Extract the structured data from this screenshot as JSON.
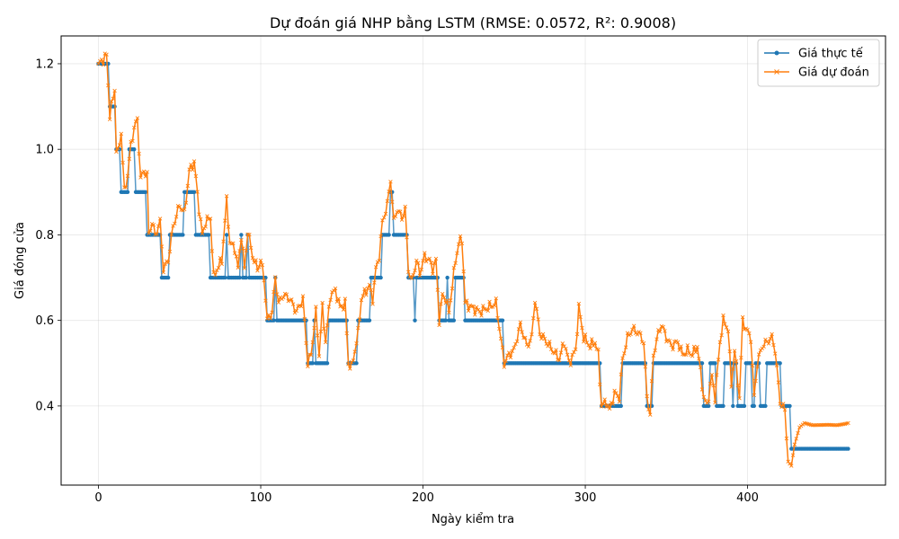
{
  "chart_data": {
    "type": "line",
    "title": "Dự đoán giá NHP bằng LSTM (RMSE: 0.0572, R²: 0.9008)",
    "xlabel": "Ngày kiểm tra",
    "ylabel": "Giá đóng cửa",
    "xlim": [
      -23,
      485
    ],
    "ylim": [
      0.215,
      1.265
    ],
    "x_ticks": [
      0,
      100,
      200,
      300,
      400
    ],
    "y_ticks": [
      0.4,
      0.6,
      0.8,
      1.0,
      1.2
    ],
    "x_tick_labels": [
      "0",
      "100",
      "200",
      "300",
      "400"
    ],
    "y_tick_labels": [
      "0.4",
      "0.6",
      "0.8",
      "1.0",
      "1.2"
    ],
    "grid": true,
    "legend_position": "top-right",
    "n_points": 463,
    "series": [
      {
        "name": "Giá thực tế",
        "color": "#1f77b4",
        "marker": "circle",
        "segments": [
          [
            0,
            1.2
          ],
          [
            7,
            1.1
          ],
          [
            11,
            1.0
          ],
          [
            14,
            0.9
          ],
          [
            19,
            1.0
          ],
          [
            23,
            0.9
          ],
          [
            30,
            0.8
          ],
          [
            39,
            0.7
          ],
          [
            44,
            0.8
          ],
          [
            53,
            0.9
          ],
          [
            60,
            0.8
          ],
          [
            69,
            0.7
          ],
          [
            79,
            0.8
          ],
          [
            80,
            0.7
          ],
          [
            88,
            0.8
          ],
          [
            89,
            0.7
          ],
          [
            92,
            0.8
          ],
          [
            93,
            0.7
          ],
          [
            104,
            0.6
          ],
          [
            109,
            0.7
          ],
          [
            110,
            0.6
          ],
          [
            129,
            0.5
          ],
          [
            133,
            0.6
          ],
          [
            134,
            0.5
          ],
          [
            142,
            0.6
          ],
          [
            154,
            0.5
          ],
          [
            160,
            0.6
          ],
          [
            168,
            0.7
          ],
          [
            175,
            0.8
          ],
          [
            180,
            0.9
          ],
          [
            182,
            0.8
          ],
          [
            191,
            0.7
          ],
          [
            195,
            0.6
          ],
          [
            196,
            0.7
          ],
          [
            210,
            0.6
          ],
          [
            215,
            0.7
          ],
          [
            216,
            0.6
          ],
          [
            220,
            0.7
          ],
          [
            226,
            0.6
          ],
          [
            250,
            0.5
          ],
          [
            310,
            0.4
          ],
          [
            323,
            0.5
          ],
          [
            338,
            0.4
          ],
          [
            342,
            0.5
          ],
          [
            373,
            0.4
          ],
          [
            377,
            0.5
          ],
          [
            381,
            0.4
          ],
          [
            386,
            0.5
          ],
          [
            391,
            0.4
          ],
          [
            392,
            0.5
          ],
          [
            394,
            0.4
          ],
          [
            399,
            0.5
          ],
          [
            403,
            0.4
          ],
          [
            405,
            0.5
          ],
          [
            408,
            0.4
          ],
          [
            412,
            0.5
          ],
          [
            421,
            0.4
          ],
          [
            427,
            0.3
          ]
        ]
      },
      {
        "name": "Giá dự đoán",
        "color": "#ff7f0e",
        "marker": "x",
        "keypoints": [
          [
            0,
            1.2
          ],
          [
            3,
            1.21
          ],
          [
            5,
            1.22
          ],
          [
            7,
            1.08
          ],
          [
            9,
            1.12
          ],
          [
            10,
            1.14
          ],
          [
            11,
            1.0
          ],
          [
            12,
            0.99
          ],
          [
            14,
            1.04
          ],
          [
            16,
            0.9
          ],
          [
            18,
            0.94
          ],
          [
            20,
            1.01
          ],
          [
            22,
            1.05
          ],
          [
            24,
            1.07
          ],
          [
            26,
            0.93
          ],
          [
            28,
            0.95
          ],
          [
            30,
            0.94
          ],
          [
            31,
            0.8
          ],
          [
            33,
            0.83
          ],
          [
            35,
            0.8
          ],
          [
            38,
            0.83
          ],
          [
            40,
            0.72
          ],
          [
            43,
            0.74
          ],
          [
            46,
            0.82
          ],
          [
            50,
            0.87
          ],
          [
            53,
            0.85
          ],
          [
            56,
            0.95
          ],
          [
            59,
            0.97
          ],
          [
            62,
            0.86
          ],
          [
            64,
            0.8
          ],
          [
            66,
            0.83
          ],
          [
            69,
            0.84
          ],
          [
            71,
            0.7
          ],
          [
            73,
            0.72
          ],
          [
            76,
            0.74
          ],
          [
            79,
            0.88
          ],
          [
            81,
            0.78
          ],
          [
            84,
            0.77
          ],
          [
            86,
            0.72
          ],
          [
            88,
            0.8
          ],
          [
            90,
            0.72
          ],
          [
            92,
            0.81
          ],
          [
            95,
            0.75
          ],
          [
            98,
            0.72
          ],
          [
            100,
            0.74
          ],
          [
            102,
            0.7
          ],
          [
            104,
            0.6
          ],
          [
            107,
            0.62
          ],
          [
            109,
            0.7
          ],
          [
            111,
            0.64
          ],
          [
            114,
            0.66
          ],
          [
            118,
            0.65
          ],
          [
            122,
            0.62
          ],
          [
            126,
            0.65
          ],
          [
            129,
            0.5
          ],
          [
            131,
            0.52
          ],
          [
            134,
            0.62
          ],
          [
            136,
            0.52
          ],
          [
            138,
            0.63
          ],
          [
            140,
            0.55
          ],
          [
            143,
            0.66
          ],
          [
            146,
            0.67
          ],
          [
            149,
            0.63
          ],
          [
            152,
            0.64
          ],
          [
            154,
            0.5
          ],
          [
            156,
            0.49
          ],
          [
            160,
            0.57
          ],
          [
            162,
            0.65
          ],
          [
            165,
            0.67
          ],
          [
            167,
            0.68
          ],
          [
            169,
            0.65
          ],
          [
            171,
            0.72
          ],
          [
            173,
            0.75
          ],
          [
            175,
            0.83
          ],
          [
            178,
            0.87
          ],
          [
            180,
            0.93
          ],
          [
            182,
            0.83
          ],
          [
            184,
            0.86
          ],
          [
            187,
            0.84
          ],
          [
            189,
            0.86
          ],
          [
            191,
            0.72
          ],
          [
            193,
            0.69
          ],
          [
            196,
            0.74
          ],
          [
            198,
            0.71
          ],
          [
            201,
            0.75
          ],
          [
            204,
            0.74
          ],
          [
            206,
            0.72
          ],
          [
            208,
            0.74
          ],
          [
            210,
            0.6
          ],
          [
            212,
            0.66
          ],
          [
            214,
            0.65
          ],
          [
            216,
            0.62
          ],
          [
            220,
            0.74
          ],
          [
            222,
            0.78
          ],
          [
            224,
            0.79
          ],
          [
            226,
            0.64
          ],
          [
            230,
            0.63
          ],
          [
            235,
            0.62
          ],
          [
            240,
            0.63
          ],
          [
            245,
            0.64
          ],
          [
            250,
            0.5
          ],
          [
            253,
            0.52
          ],
          [
            256,
            0.53
          ],
          [
            260,
            0.59
          ],
          [
            264,
            0.54
          ],
          [
            267,
            0.56
          ],
          [
            269,
            0.65
          ],
          [
            272,
            0.57
          ],
          [
            276,
            0.55
          ],
          [
            280,
            0.53
          ],
          [
            284,
            0.51
          ],
          [
            287,
            0.55
          ],
          [
            290,
            0.5
          ],
          [
            294,
            0.53
          ],
          [
            296,
            0.63
          ],
          [
            299,
            0.56
          ],
          [
            303,
            0.54
          ],
          [
            306,
            0.55
          ],
          [
            308,
            0.52
          ],
          [
            310,
            0.4
          ],
          [
            313,
            0.41
          ],
          [
            315,
            0.39
          ],
          [
            318,
            0.43
          ],
          [
            321,
            0.42
          ],
          [
            323,
            0.51
          ],
          [
            326,
            0.56
          ],
          [
            329,
            0.58
          ],
          [
            333,
            0.57
          ],
          [
            336,
            0.55
          ],
          [
            338,
            0.42
          ],
          [
            340,
            0.38
          ],
          [
            342,
            0.52
          ],
          [
            345,
            0.57
          ],
          [
            347,
            0.59
          ],
          [
            350,
            0.56
          ],
          [
            353,
            0.54
          ],
          [
            357,
            0.55
          ],
          [
            360,
            0.52
          ],
          [
            363,
            0.53
          ],
          [
            366,
            0.52
          ],
          [
            369,
            0.54
          ],
          [
            373,
            0.42
          ],
          [
            375,
            0.4
          ],
          [
            378,
            0.47
          ],
          [
            380,
            0.42
          ],
          [
            383,
            0.55
          ],
          [
            385,
            0.6
          ],
          [
            388,
            0.58
          ],
          [
            390,
            0.45
          ],
          [
            392,
            0.53
          ],
          [
            395,
            0.42
          ],
          [
            397,
            0.6
          ],
          [
            399,
            0.58
          ],
          [
            402,
            0.56
          ],
          [
            404,
            0.42
          ],
          [
            406,
            0.5
          ],
          [
            409,
            0.54
          ],
          [
            412,
            0.55
          ],
          [
            415,
            0.56
          ],
          [
            417,
            0.53
          ],
          [
            420,
            0.41
          ],
          [
            423,
            0.39
          ],
          [
            425,
            0.27
          ],
          [
            427,
            0.26
          ],
          [
            429,
            0.31
          ],
          [
            432,
            0.35
          ],
          [
            435,
            0.36
          ],
          [
            440,
            0.355
          ],
          [
            450,
            0.356
          ],
          [
            455,
            0.355
          ],
          [
            460,
            0.358
          ],
          [
            462,
            0.36
          ]
        ]
      }
    ]
  }
}
